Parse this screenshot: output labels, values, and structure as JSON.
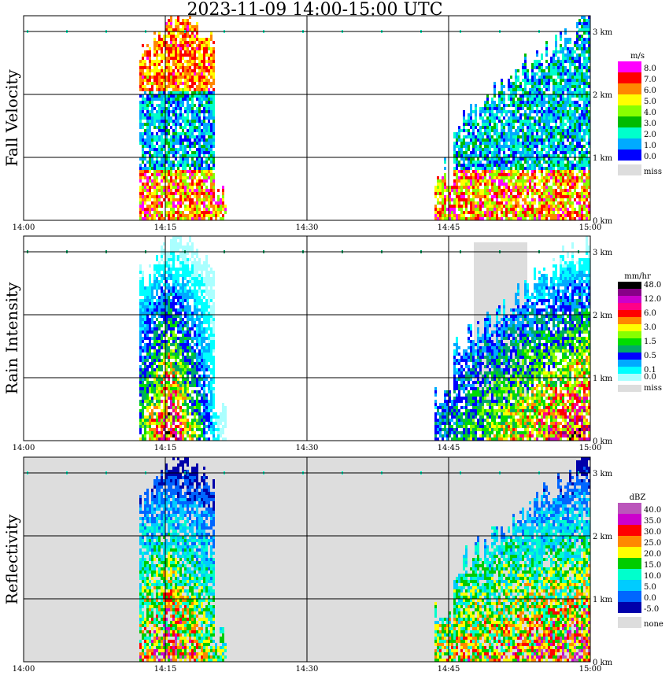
{
  "title": "2023-11-09   14:00-15:00 UTC",
  "chart_data": [
    {
      "type": "heatmap",
      "ylabel": "Fall Velocity",
      "units": "m/s",
      "x_ticks": [
        "14:00",
        "14:15",
        "14:30",
        "14:45",
        "15:00"
      ],
      "y_ticks": [
        "0 km",
        "1 km",
        "2 km",
        "3 km"
      ],
      "legend": [
        {
          "label": "8.0",
          "color": "#ff00ff"
        },
        {
          "label": "7.0",
          "color": "#ff0000"
        },
        {
          "label": "6.0",
          "color": "#ff8800"
        },
        {
          "label": "5.0",
          "color": "#ffff00"
        },
        {
          "label": "4.0",
          "color": "#88ff00"
        },
        {
          "label": "3.0",
          "color": "#00bb00"
        },
        {
          "label": "2.0",
          "color": "#00ffcc"
        },
        {
          "label": "1.0",
          "color": "#00aaff"
        },
        {
          "label": "0.0",
          "color": "#0000ff"
        },
        {
          "label": "miss",
          "color": "#dddddd"
        }
      ],
      "missing_fill": false
    },
    {
      "type": "heatmap",
      "ylabel": "Rain Intensity",
      "units": "mm/hr",
      "x_ticks": [
        "14:00",
        "14:15",
        "14:30",
        "14:45",
        "15:00"
      ],
      "y_ticks": [
        "0 km",
        "1 km",
        "2 km",
        "3 km"
      ],
      "legend": [
        {
          "label": "48.0",
          "color": "#000000"
        },
        {
          "label": "",
          "color": "#880088"
        },
        {
          "label": "12.0",
          "color": "#cc00cc"
        },
        {
          "label": "",
          "color": "#ff0088"
        },
        {
          "label": "6.0",
          "color": "#ff0000"
        },
        {
          "label": "",
          "color": "#ff8800"
        },
        {
          "label": "3.0",
          "color": "#ffff00"
        },
        {
          "label": "",
          "color": "#88ff00"
        },
        {
          "label": "1.5",
          "color": "#00dd00"
        },
        {
          "label": "",
          "color": "#00aa66"
        },
        {
          "label": "0.5",
          "color": "#0000ff"
        },
        {
          "label": "",
          "color": "#00aaff"
        },
        {
          "label": "0.1",
          "color": "#00ffff"
        },
        {
          "label": "0.0",
          "color": "#aaffff"
        },
        {
          "label": "miss",
          "color": "#dddddd"
        }
      ],
      "missing_fill": false
    },
    {
      "type": "heatmap",
      "ylabel": "Reflectivity",
      "units": "dBZ",
      "x_ticks": [
        "14:00",
        "14:15",
        "14:30",
        "14:45",
        "15:00"
      ],
      "y_ticks": [
        "0 km",
        "1 km",
        "2 km",
        "3 km"
      ],
      "legend": [
        {
          "label": "40.0",
          "color": "#bb55bb"
        },
        {
          "label": "35.0",
          "color": "#cc00cc"
        },
        {
          "label": "30.0",
          "color": "#ff0000"
        },
        {
          "label": "25.0",
          "color": "#ff8800"
        },
        {
          "label": "20.0",
          "color": "#ffff00"
        },
        {
          "label": "15.0",
          "color": "#00cc00"
        },
        {
          "label": "10.0",
          "color": "#00ffcc"
        },
        {
          "label": "5.0",
          "color": "#00ccff"
        },
        {
          "label": "0.0",
          "color": "#0066ff"
        },
        {
          "label": "-5.0",
          "color": "#0000aa"
        },
        {
          "label": "none",
          "color": "#dddddd"
        }
      ],
      "missing_fill": true
    }
  ]
}
